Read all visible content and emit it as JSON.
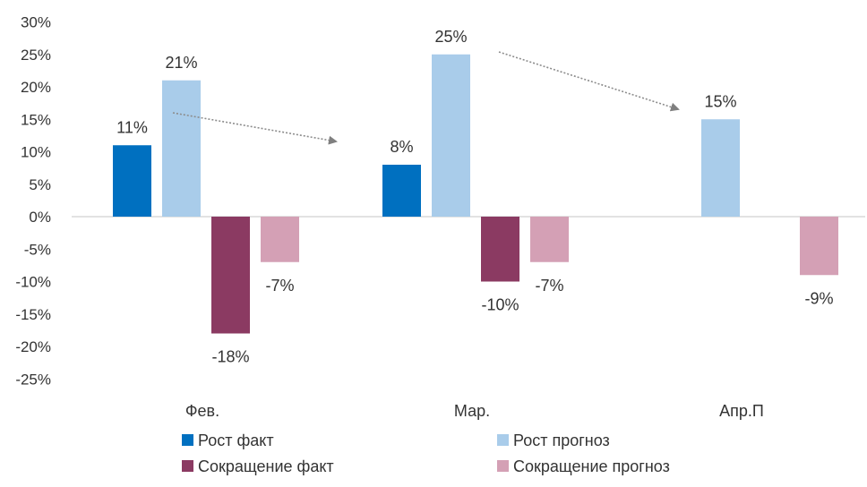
{
  "chart_data": {
    "type": "bar",
    "categories": [
      "Фев.",
      "Мар.",
      "Апр.П"
    ],
    "series": [
      {
        "name": "Рост факт",
        "values": [
          11,
          8,
          null
        ],
        "labels": [
          "11%",
          "8%",
          ""
        ],
        "color": "#0070C0"
      },
      {
        "name": "Рост прогноз",
        "values": [
          21,
          25,
          15
        ],
        "labels": [
          "21%",
          "25%",
          "15%"
        ],
        "color": "#A9CCEA"
      },
      {
        "name": "Сокращение факт",
        "values": [
          -18,
          -10,
          null
        ],
        "labels": [
          "-18%",
          "-10%",
          ""
        ],
        "color": "#8B3A62"
      },
      {
        "name": "Сокращение прогноз",
        "values": [
          -7,
          -7,
          -9
        ],
        "labels": [
          "-7%",
          "-7%",
          "-9%"
        ],
        "color": "#D4A0B5"
      }
    ],
    "yticks": [
      "30%",
      "25%",
      "20%",
      "15%",
      "10%",
      "5%",
      "0%",
      "-5%",
      "-10%",
      "-15%",
      "-20%",
      "-25%"
    ],
    "ylim": [
      -25,
      30
    ],
    "legend_position": "bottom",
    "arrows": [
      {
        "from_series": "Рост прогноз",
        "from_category": "Фев.",
        "to_category": "Мар."
      },
      {
        "from_series": "Рост прогноз",
        "from_category": "Мар.",
        "to_category": "Апр.П"
      }
    ]
  }
}
